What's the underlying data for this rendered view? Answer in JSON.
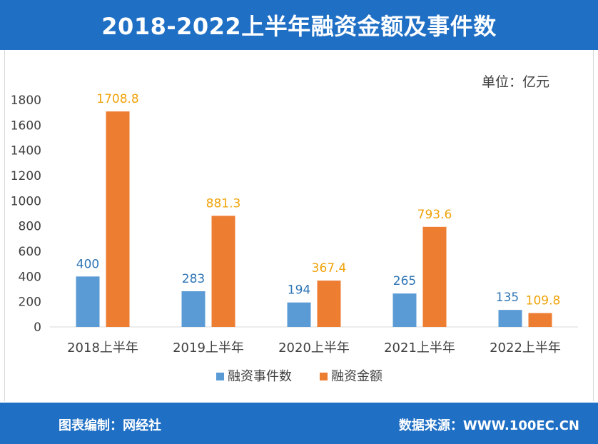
{
  "header": {
    "title": "2018-2022上半年融资金额及事件数"
  },
  "unit_label": "单位：亿元",
  "footer": {
    "left": "图表编制：网经社",
    "right": "数据来源：WWW.100EC.CN"
  },
  "colors": {
    "header_bg": "#1f6fc5",
    "series_events": "#5b9bd5",
    "series_amount": "#ed7d31",
    "label_events": "#2e75b6",
    "label_amount": "#f0a30a"
  },
  "chart_data": {
    "type": "bar",
    "categories": [
      "2018上半年",
      "2019上半年",
      "2020上半年",
      "2021上半年",
      "2022上半年"
    ],
    "series": [
      {
        "name": "融资事件数",
        "values": [
          400,
          283,
          194,
          265,
          135
        ],
        "labels": [
          "400",
          "283",
          "194",
          "265",
          "135"
        ]
      },
      {
        "name": "融资金额",
        "values": [
          1708.8,
          881.3,
          367.4,
          793.6,
          109.8
        ],
        "labels": [
          "1708.8",
          "881.3",
          "367.4",
          "793.6",
          "109.8"
        ]
      }
    ],
    "ylim": [
      0,
      1800
    ],
    "yticks": [
      "0",
      "200",
      "400",
      "600",
      "800",
      "1000",
      "1200",
      "1400",
      "1600",
      "1800"
    ],
    "grid": false,
    "legend_position": "bottom"
  }
}
